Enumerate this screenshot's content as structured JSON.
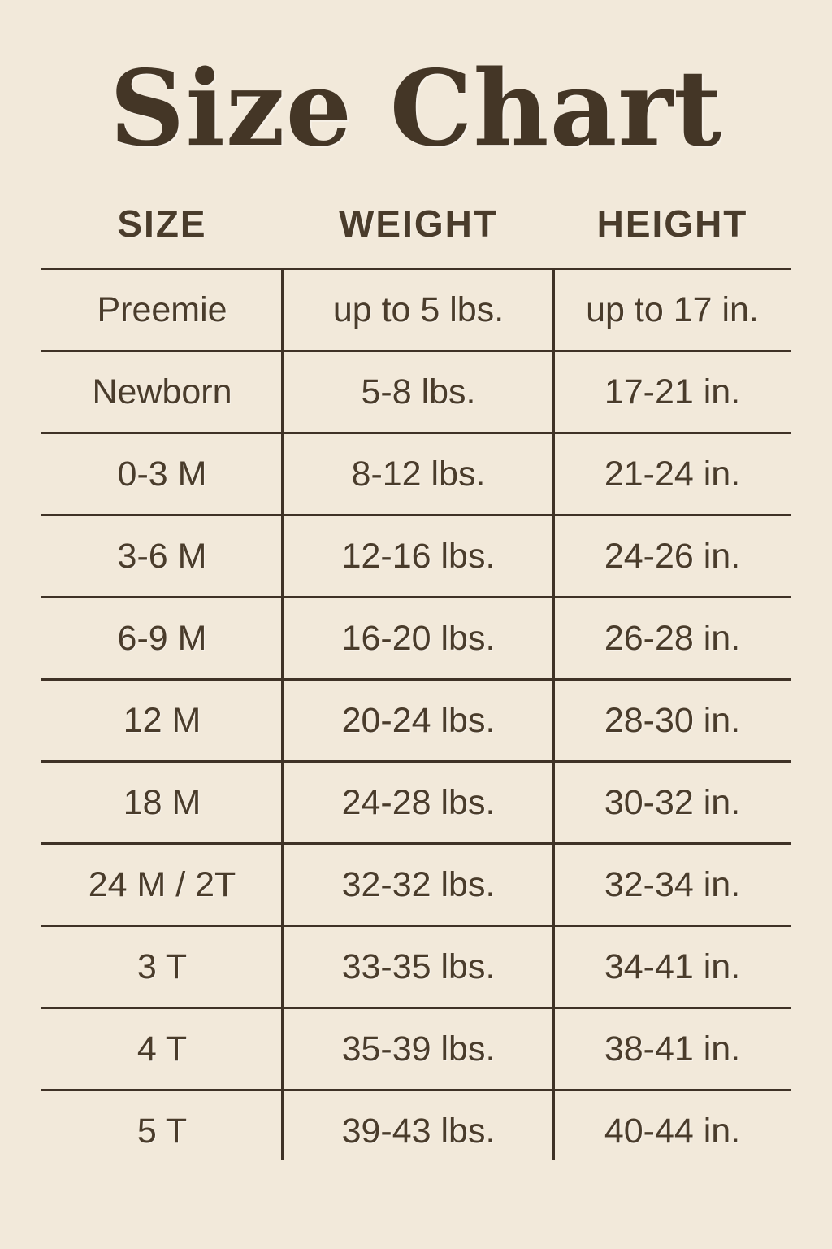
{
  "page": {
    "background": "#f2e9da",
    "line_color": "#3f3226",
    "text_color": "#4a3c2b",
    "title_color": "#443626"
  },
  "chart_data": {
    "type": "table",
    "title": "Size Chart",
    "columns": [
      "SIZE",
      "WEIGHT",
      "HEIGHT"
    ],
    "rows": [
      {
        "size": "Preemie",
        "weight": "up to 5 lbs.",
        "height": "up to 17 in."
      },
      {
        "size": "Newborn",
        "weight": "5-8 lbs.",
        "height": "17-21 in."
      },
      {
        "size": "0-3 M",
        "weight": "8-12 lbs.",
        "height": "21-24 in."
      },
      {
        "size": "3-6 M",
        "weight": "12-16 lbs.",
        "height": "24-26 in."
      },
      {
        "size": "6-9 M",
        "weight": "16-20 lbs.",
        "height": "26-28 in."
      },
      {
        "size": "12 M",
        "weight": "20-24 lbs.",
        "height": "28-30 in."
      },
      {
        "size": "18 M",
        "weight": "24-28 lbs.",
        "height": "30-32 in."
      },
      {
        "size": "24 M / 2T",
        "weight": "32-32 lbs.",
        "height": "32-34 in."
      },
      {
        "size": "3 T",
        "weight": "33-35 lbs.",
        "height": "34-41 in."
      },
      {
        "size": "4 T",
        "weight": "35-39 lbs.",
        "height": "38-41 in."
      },
      {
        "size": "5 T",
        "weight": "39-43 lbs.",
        "height": "40-44 in."
      }
    ]
  }
}
